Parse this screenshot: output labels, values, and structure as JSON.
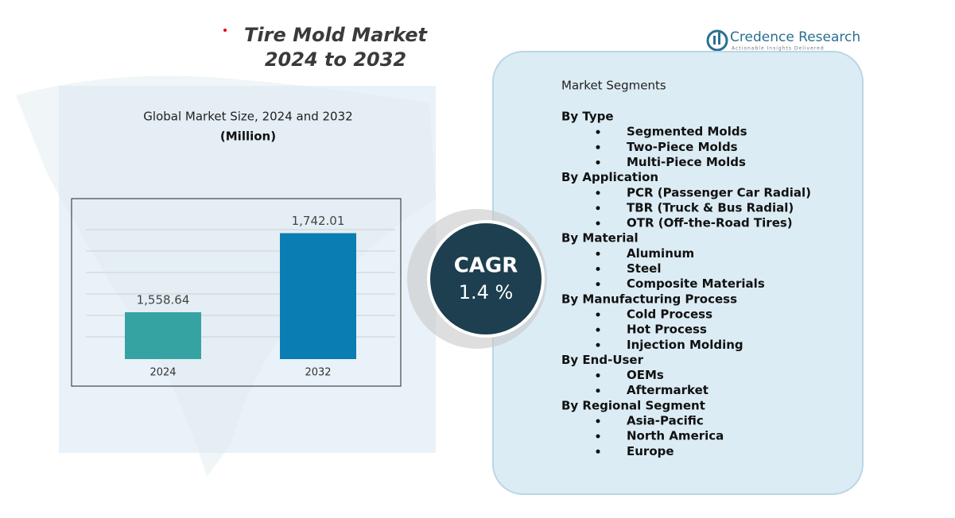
{
  "header": {
    "title_line1": "Tire Mold Market",
    "title_line2": "2024 to 2032"
  },
  "logo": {
    "name": "Credence Research",
    "tagline": "Actionable Insights Delivered"
  },
  "chart_data": {
    "type": "bar",
    "title": "Global Market Size,  2024 and 2032",
    "subtitle": "(Million)",
    "categories": [
      "2024",
      "2032"
    ],
    "series": [
      {
        "name": "Market Size",
        "colors": [
          "#36a3a3",
          "#0a7db3"
        ],
        "values": [
          1558.64,
          1742.01
        ],
        "value_labels": [
          "1,558.64",
          "1,742.01"
        ]
      }
    ],
    "ylim": [
      1450,
      1800
    ]
  },
  "cagr": {
    "label": "CAGR",
    "value": "1.4 %"
  },
  "segments": {
    "title": "Market Segments",
    "groups": [
      {
        "heading": "By Type",
        "items": [
          "Segmented Molds",
          "Two-Piece Molds",
          "Multi-Piece Molds"
        ]
      },
      {
        "heading": "By Application",
        "items": [
          "PCR (Passenger Car Radial)",
          "TBR (Truck & Bus Radial)",
          "OTR (Off-the-Road Tires)"
        ]
      },
      {
        "heading": "By Material",
        "items": [
          "Aluminum",
          "Steel",
          "Composite Materials"
        ]
      },
      {
        "heading": "By Manufacturing Process",
        "items": [
          "Cold Process",
          "Hot Process",
          "Injection Molding"
        ]
      },
      {
        "heading": "By End-User",
        "items": [
          "OEMs",
          "Aftermarket"
        ]
      },
      {
        "heading": "By Regional Segment",
        "items": [
          "Asia-Pacific",
          "North America",
          "Europe"
        ]
      }
    ]
  }
}
